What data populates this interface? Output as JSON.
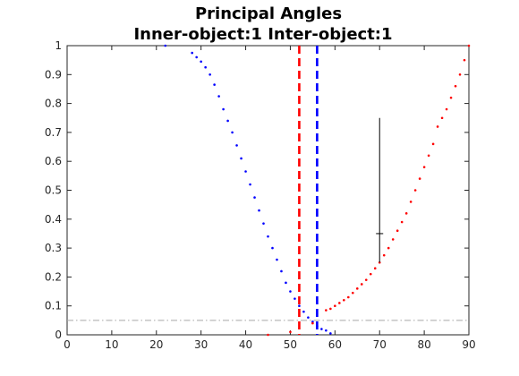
{
  "chart_data": {
    "type": "scatter",
    "title": [
      "Principal Angles",
      "Inner-object:1  Inter-object:1"
    ],
    "xlabel": "",
    "ylabel": "",
    "xlim": [
      0,
      90
    ],
    "ylim": [
      0,
      1
    ],
    "xticks": [
      "0",
      "10",
      "20",
      "30",
      "40",
      "50",
      "60",
      "70",
      "80",
      "90"
    ],
    "yticks": [
      "0",
      "0.1",
      "0.2",
      "0.3",
      "0.4",
      "0.5",
      "0.6",
      "0.7",
      "0.8",
      "0.9",
      "1"
    ],
    "grid": false,
    "legend": "none",
    "series": [
      {
        "color": "#0000ff",
        "marker": "dot",
        "points": [
          [
            22,
            1.0
          ],
          [
            28,
            0.975
          ],
          [
            29,
            0.96
          ],
          [
            30,
            0.945
          ],
          [
            31,
            0.925
          ],
          [
            32,
            0.9
          ],
          [
            33,
            0.865
          ],
          [
            34,
            0.825
          ],
          [
            35,
            0.78
          ],
          [
            36,
            0.74
          ],
          [
            37,
            0.7
          ],
          [
            38,
            0.655
          ],
          [
            39,
            0.61
          ],
          [
            40,
            0.565
          ],
          [
            41,
            0.52
          ],
          [
            42,
            0.475
          ],
          [
            43,
            0.43
          ],
          [
            44,
            0.385
          ],
          [
            45,
            0.34
          ],
          [
            46,
            0.3
          ],
          [
            47,
            0.26
          ],
          [
            48,
            0.22
          ],
          [
            49,
            0.18
          ],
          [
            50,
            0.15
          ],
          [
            51,
            0.125
          ],
          [
            52,
            0.1
          ],
          [
            53,
            0.08
          ],
          [
            54,
            0.06
          ],
          [
            55,
            0.045
          ],
          [
            56,
            0.03
          ],
          [
            57,
            0.02
          ],
          [
            58,
            0.015
          ],
          [
            59,
            0.005
          ]
        ]
      },
      {
        "color": "#ff0000",
        "marker": "dot",
        "points": [
          [
            45,
            0.0
          ],
          [
            50,
            0.01
          ],
          [
            55,
            0.04
          ],
          [
            58,
            0.085
          ],
          [
            59,
            0.09
          ],
          [
            60,
            0.1
          ],
          [
            61,
            0.11
          ],
          [
            62,
            0.12
          ],
          [
            63,
            0.13
          ],
          [
            64,
            0.145
          ],
          [
            65,
            0.16
          ],
          [
            66,
            0.175
          ],
          [
            67,
            0.19
          ],
          [
            68,
            0.21
          ],
          [
            69,
            0.23
          ],
          [
            70,
            0.25
          ],
          [
            71,
            0.275
          ],
          [
            72,
            0.3
          ],
          [
            73,
            0.33
          ],
          [
            74,
            0.36
          ],
          [
            75,
            0.39
          ],
          [
            76,
            0.42
          ],
          [
            77,
            0.46
          ],
          [
            78,
            0.5
          ],
          [
            79,
            0.54
          ],
          [
            80,
            0.58
          ],
          [
            81,
            0.62
          ],
          [
            82,
            0.66
          ],
          [
            83,
            0.72
          ],
          [
            84,
            0.75
          ],
          [
            85,
            0.78
          ],
          [
            86,
            0.82
          ],
          [
            87,
            0.86
          ],
          [
            88,
            0.9
          ],
          [
            89,
            0.95
          ],
          [
            90,
            1.0
          ]
        ]
      }
    ],
    "vlines": [
      {
        "x": 52,
        "color": "#ff0000",
        "style": "dashed"
      },
      {
        "x": 56,
        "color": "#0000ff",
        "style": "dashed"
      }
    ],
    "hlines": [
      {
        "y": 0.05,
        "color": "#a6a6a6",
        "style": "dash-dot"
      }
    ],
    "errorbar": {
      "x": 70,
      "y": 0.35,
      "low": 0.25,
      "high": 0.75,
      "color": "#000000"
    }
  }
}
